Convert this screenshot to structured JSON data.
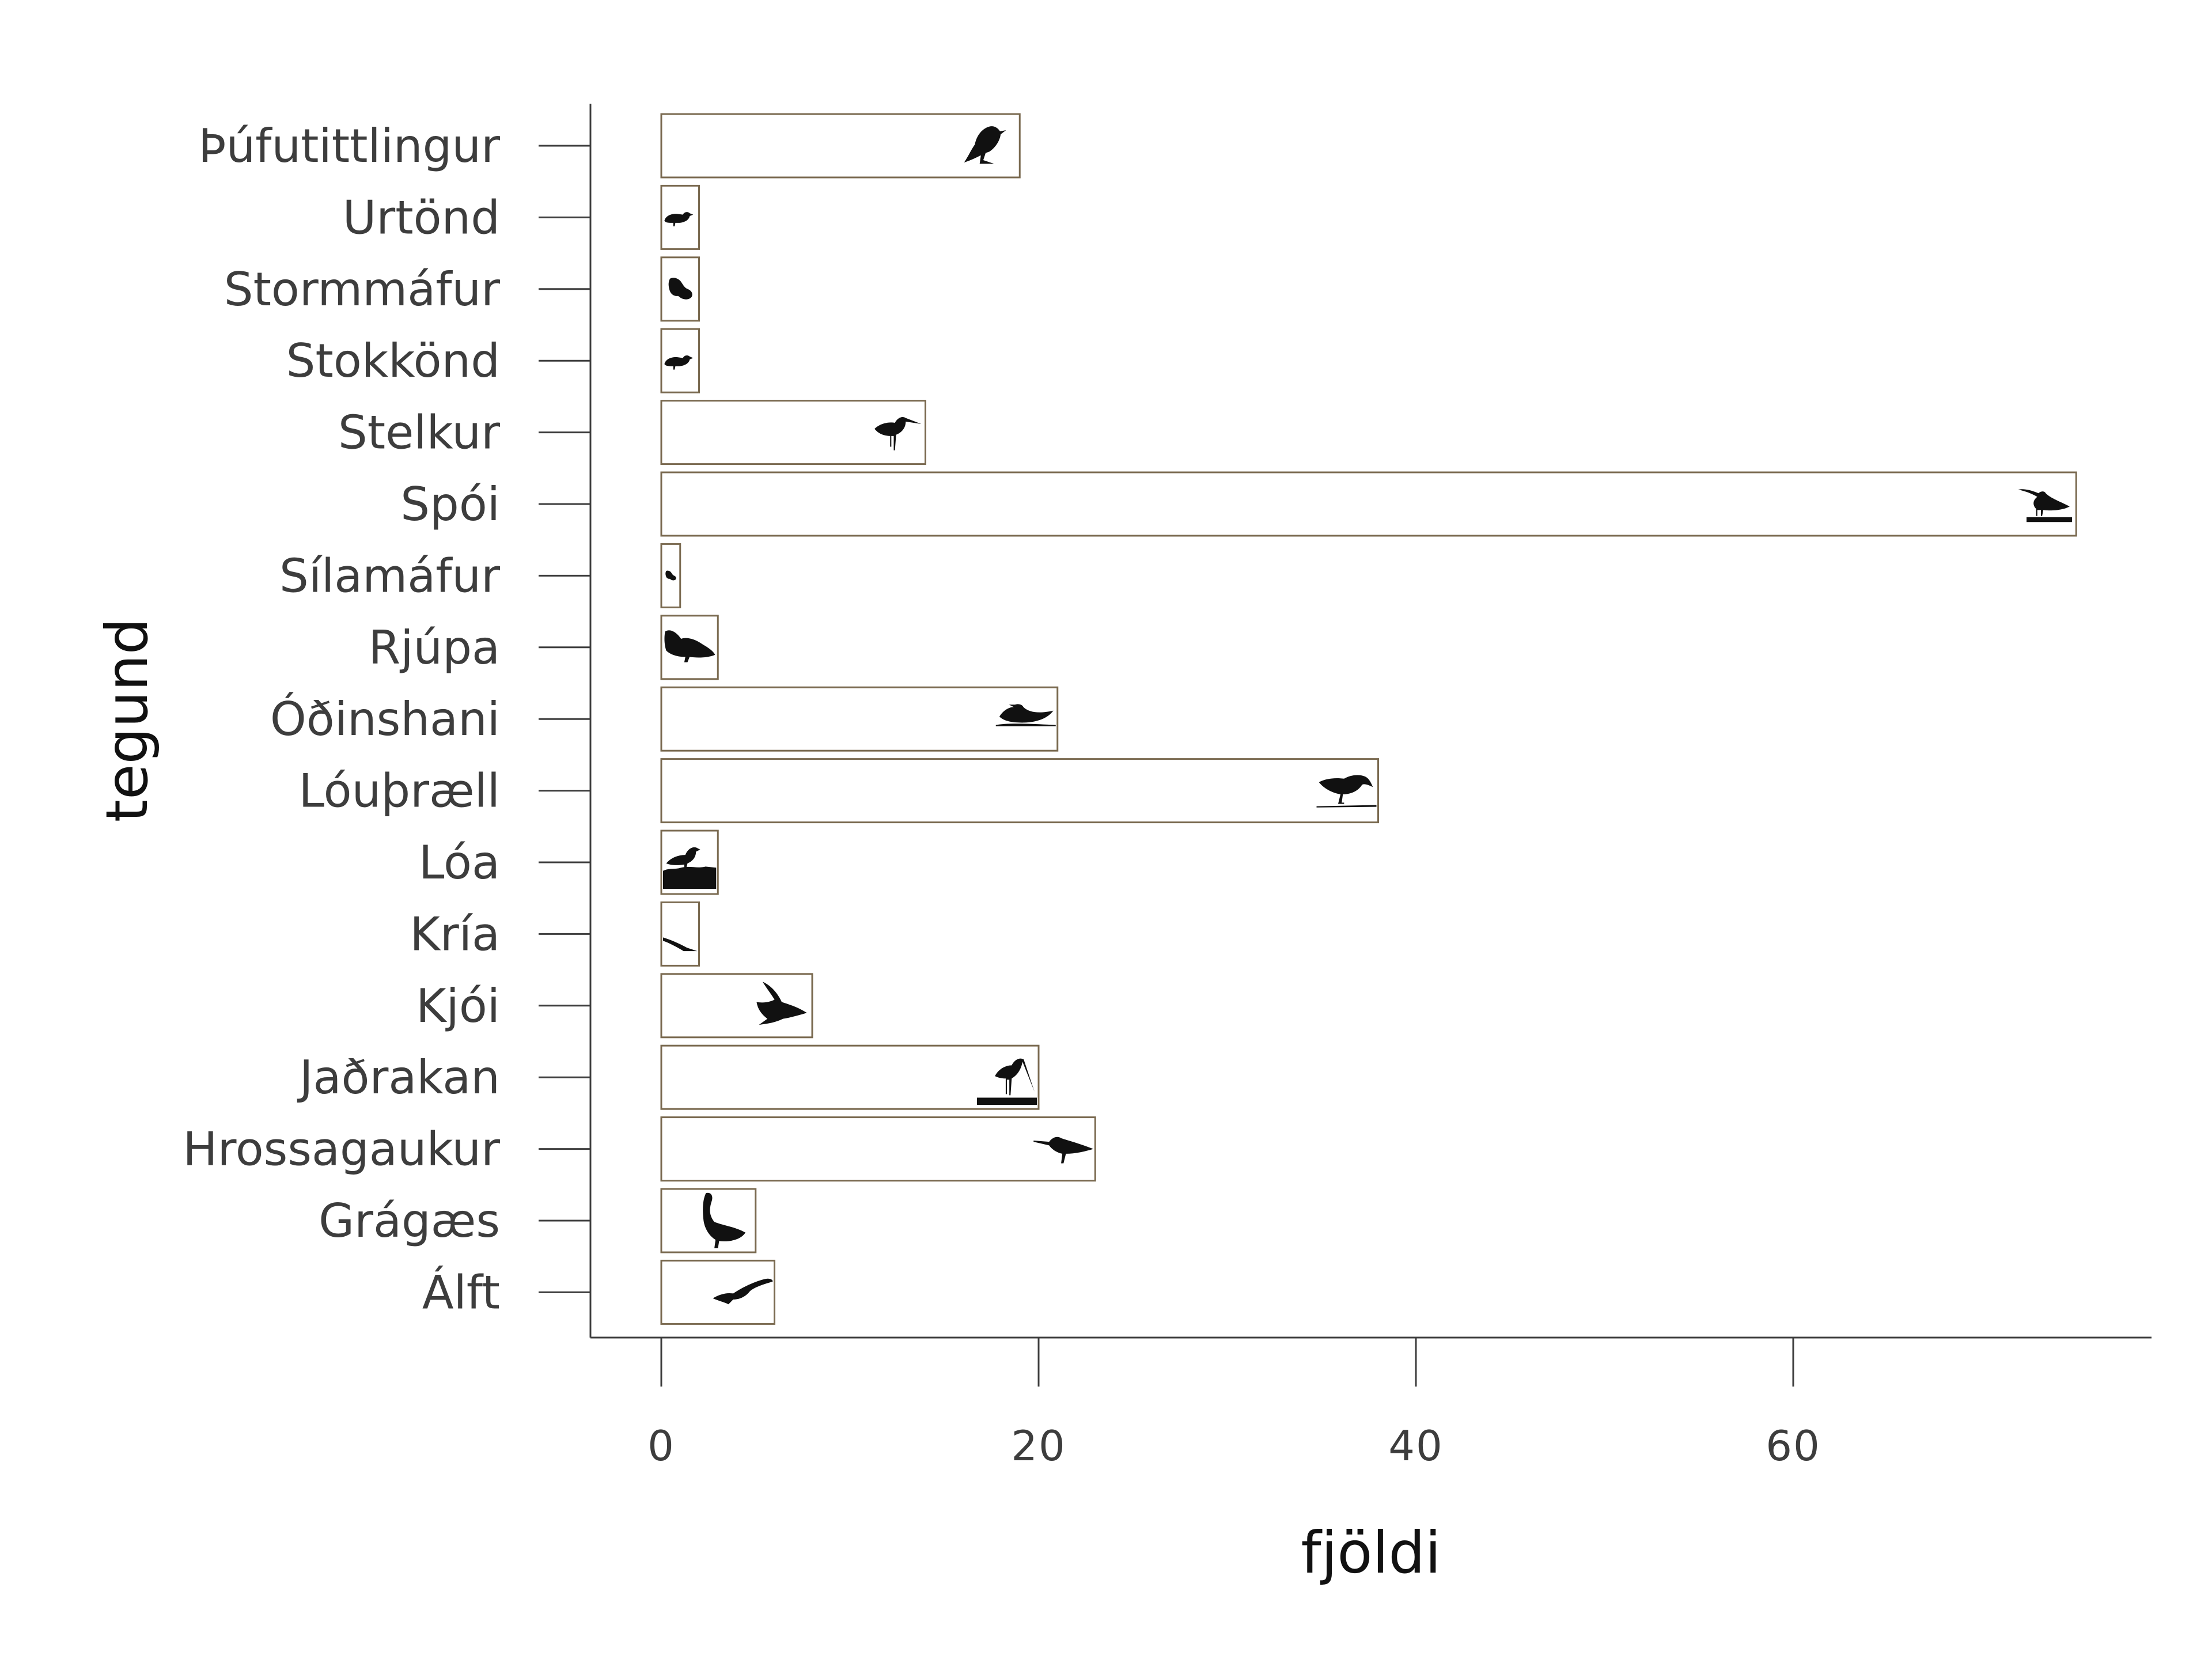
{
  "chart_data": {
    "type": "bar",
    "orientation": "horizontal",
    "title": "",
    "xlabel": "fjöldi",
    "ylabel": "tegund",
    "xlim": [
      -1.9,
      78.8
    ],
    "xticks": [
      0,
      20,
      40,
      60
    ],
    "grid": false,
    "bar_fill": "#ffffff",
    "bar_edge": "#7a6a50",
    "categories": [
      "Þúfutittlingur",
      "Urtönd",
      "Stormmáfur",
      "Stokkönd",
      "Stelkur",
      "Spói",
      "Sílamáfur",
      "Rjúpa",
      "Óðinshani",
      "Lóuþræll",
      "Lóa",
      "Kría",
      "Kjói",
      "Jaðrakan",
      "Hrossagaukur",
      "Grágæs",
      "Álft"
    ],
    "values": [
      19,
      2,
      2,
      2,
      14,
      75,
      1,
      3,
      21,
      38,
      3,
      2,
      8,
      20,
      23,
      5,
      6
    ],
    "icons": [
      "songbird-icon",
      "duck-icon",
      "gull-icon",
      "duck-icon",
      "redshank-icon",
      "whimbrel-icon",
      "gull-icon",
      "ptarmigan-icon",
      "phalarope-icon",
      "dunlin-icon",
      "plover-icon",
      "tern-icon",
      "skua-icon",
      "godwit-icon",
      "snipe-icon",
      "goose-icon",
      "swan-icon"
    ]
  }
}
